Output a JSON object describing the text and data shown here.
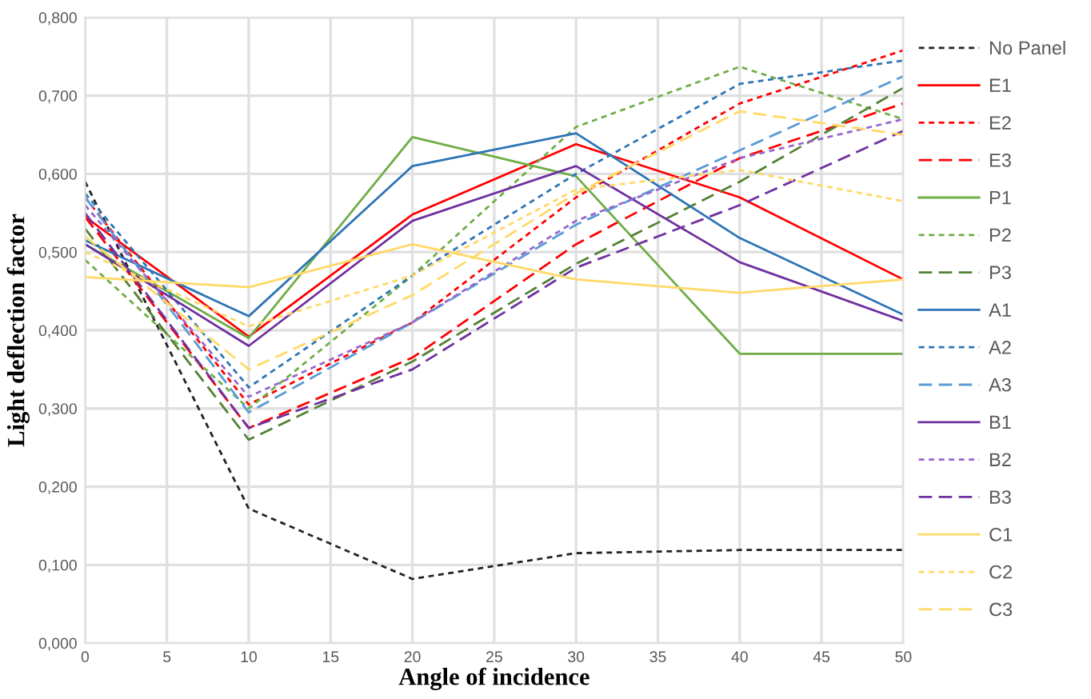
{
  "chart_data": {
    "type": "line",
    "xlabel": "Angle of incidence",
    "ylabel": "Light deflection factor",
    "x": [
      0,
      10,
      20,
      30,
      40,
      50
    ],
    "xlim": [
      0,
      50
    ],
    "xticks": [
      0,
      5,
      10,
      15,
      20,
      25,
      30,
      35,
      40,
      45,
      50
    ],
    "ylim": [
      0,
      0.8
    ],
    "yticks": [
      {
        "value": 0,
        "label": "0,000"
      },
      {
        "value": 0.1,
        "label": "0,100"
      },
      {
        "value": 0.2,
        "label": "0,200"
      },
      {
        "value": 0.3,
        "label": "0,300"
      },
      {
        "value": 0.4,
        "label": "0,400"
      },
      {
        "value": 0.5,
        "label": "0,500"
      },
      {
        "value": 0.6,
        "label": "0,600"
      },
      {
        "value": 0.7,
        "label": "0,700"
      },
      {
        "value": 0.8,
        "label": "0,800"
      }
    ],
    "grid": true,
    "legend": "right",
    "marker": "none",
    "series": [
      {
        "name": "No Panel",
        "color": "#222222",
        "line_style": "dotted",
        "values": [
          0.59,
          0.172,
          0.082,
          0.115,
          0.119,
          0.119
        ]
      },
      {
        "name": "E1",
        "color": "#ff0000",
        "line_style": "solid",
        "values": [
          0.545,
          0.392,
          0.548,
          0.638,
          0.57,
          0.465
        ]
      },
      {
        "name": "E2",
        "color": "#ff0000",
        "line_style": "dotted",
        "values": [
          0.57,
          0.305,
          0.41,
          0.57,
          0.69,
          0.758
        ]
      },
      {
        "name": "E3",
        "color": "#ff0000",
        "line_style": "dashed",
        "values": [
          0.545,
          0.275,
          0.365,
          0.51,
          0.62,
          0.69
        ]
      },
      {
        "name": "P1",
        "color": "#70ad47",
        "line_style": "solid",
        "values": [
          0.51,
          0.39,
          0.647,
          0.597,
          0.37,
          0.37
        ]
      },
      {
        "name": "P2",
        "color": "#70ad47",
        "line_style": "dotted",
        "values": [
          0.49,
          0.3,
          0.47,
          0.66,
          0.737,
          0.67
        ]
      },
      {
        "name": "P3",
        "color": "#548235",
        "line_style": "dashed",
        "values": [
          0.53,
          0.26,
          0.36,
          0.485,
          0.59,
          0.71
        ]
      },
      {
        "name": "A1",
        "color": "#2e75b6",
        "line_style": "solid",
        "values": [
          0.515,
          0.418,
          0.61,
          0.652,
          0.518,
          0.42
        ]
      },
      {
        "name": "A2",
        "color": "#2e75b6",
        "line_style": "dotted",
        "values": [
          0.575,
          0.327,
          0.47,
          0.6,
          0.715,
          0.745
        ]
      },
      {
        "name": "A3",
        "color": "#5b9bd5",
        "line_style": "dashed",
        "values": [
          0.57,
          0.295,
          0.41,
          0.535,
          0.63,
          0.725
        ]
      },
      {
        "name": "B1",
        "color": "#7030a0",
        "line_style": "solid",
        "values": [
          0.51,
          0.38,
          0.54,
          0.61,
          0.487,
          0.412
        ]
      },
      {
        "name": "B2",
        "color": "#9966cc",
        "line_style": "dotted",
        "values": [
          0.56,
          0.315,
          0.41,
          0.54,
          0.62,
          0.67
        ]
      },
      {
        "name": "B3",
        "color": "#7030a0",
        "line_style": "dashed",
        "values": [
          0.55,
          0.275,
          0.35,
          0.48,
          0.56,
          0.655
        ]
      },
      {
        "name": "C1",
        "color": "#ffd966",
        "line_style": "solid",
        "values": [
          0.468,
          0.455,
          0.51,
          0.465,
          0.448,
          0.465
        ]
      },
      {
        "name": "C2",
        "color": "#ffd966",
        "line_style": "dotted",
        "values": [
          0.5,
          0.405,
          0.47,
          0.58,
          0.605,
          0.565
        ]
      },
      {
        "name": "C3",
        "color": "#ffd966",
        "line_style": "dashed",
        "values": [
          0.52,
          0.35,
          0.445,
          0.575,
          0.68,
          0.65
        ]
      }
    ]
  }
}
